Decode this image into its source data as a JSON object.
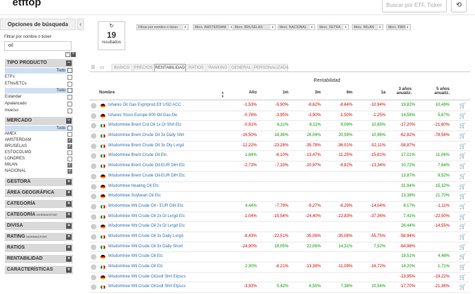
{
  "header": {
    "logo": "etftop",
    "search_placeholder": "Buscar por ETF, Ticker",
    "history_icon": "history-icon"
  },
  "sidebar": {
    "title": "Opciones de búsqueda",
    "filter_label": "Filtrar por nombre o ticker",
    "filter_value": "oil",
    "tipo_producto": {
      "label": "TIPO PRODUCTO",
      "all_label": "Todo",
      "options": [
        {
          "label": "ETFs",
          "checked": false
        },
        {
          "label": "ETNs/ETCs",
          "checked": false
        }
      ],
      "all_label2": "Todo",
      "options2": [
        {
          "label": "Estándar",
          "checked": false
        },
        {
          "label": "Apalancado",
          "checked": false
        },
        {
          "label": "Inverso",
          "checked": false
        }
      ]
    },
    "mercado": {
      "label": "MERCADO",
      "all_label": "Todo",
      "options": [
        {
          "label": "AMEX",
          "checked": false
        },
        {
          "label": "AMSTERDAM",
          "checked": true
        },
        {
          "label": "BRUSELAS",
          "checked": true
        },
        {
          "label": "ESTOCOLMO",
          "checked": false
        },
        {
          "label": "LONDRES",
          "checked": false
        },
        {
          "label": "MILAN",
          "checked": true
        },
        {
          "label": "NACIONAL",
          "checked": true
        }
      ]
    },
    "sections": [
      {
        "label": "GESTORA",
        "small": ""
      },
      {
        "label": "ÁREA GEOGRÁFICA",
        "small": ""
      },
      {
        "label": "CATEGORÍA",
        "small": ""
      },
      {
        "label": "CATEGORÍA",
        "small": "MORNINGSTAR"
      },
      {
        "label": "DIVISA",
        "small": ""
      },
      {
        "label": "RATING",
        "small": "MORNINGSTAR"
      },
      {
        "label": "RATIOS",
        "small": ""
      },
      {
        "label": "RENTABILIDAD",
        "small": ""
      },
      {
        "label": "CARACTERÍSTICAS",
        "small": ""
      }
    ]
  },
  "results": {
    "count": "19",
    "label": "resultados",
    "refresh_icon": "refresh-icon"
  },
  "chips": [
    "Filtrar por nombre o ticker",
    "Merc. AMSTERDAM",
    "Merc. BRUSELAS",
    "Merc. NACIONAL",
    "Merc. XETRA",
    "Merc. MILAN",
    "Merc. PARIS"
  ],
  "tabs": [
    "BASICO",
    "PRECIOS",
    "RENTABILIDAD",
    "RATIOS",
    "RANKING",
    "GENERAL",
    "PERSONALIZADA"
  ],
  "active_tab": "RENTABILIDAD",
  "table": {
    "group_header": "Rentabilidad",
    "columns": [
      "Nombre",
      "Año",
      "1m",
      "3m",
      "6m",
      "1a",
      "3 años anualiz.",
      "5 años anualiz."
    ],
    "rows": [
      {
        "flag": "de",
        "name": "Ishares Oil Gas Explrprod Etf USD ACC",
        "v": [
          "-1,53%",
          "-5,90%",
          "-8,62%",
          "-8,64%",
          "-10,94%",
          "19,82%",
          "10,49%"
        ]
      },
      {
        "flag": "de",
        "name": "Ishares Stoxx Europe 600 Oil Gas-De",
        "v": [
          "-0,76%",
          "-3,95%",
          "-3,90%",
          "-1,50%",
          "-1,25%",
          "14,58%",
          "5,87%"
        ]
      },
      {
        "flag": "it",
        "name": "Wisdomtree Brent Crd Oil 1x Dl Shrt Etc",
        "v": [
          "-0,91%",
          "6,11%",
          "8,11%",
          "9,09%",
          "10,65%",
          "-17,20%",
          "-21,60%"
        ]
      },
      {
        "flag": "it",
        "name": "Wisdomtree Brent Crude Oil 3x Daily Shrt",
        "v": [
          "-16,50%",
          "18,36%",
          "26,04%",
          "20,59%",
          "10,96%",
          "-62,82%",
          "-78,56%"
        ]
      },
      {
        "flag": "it",
        "name": "Wisdomtree Brent Crude Oil 3x Dly Lvrgd",
        "v": [
          "-12,22%",
          "-23,28%",
          "-35,78%",
          "-36,01%",
          "-52,11%",
          "-58,87%",
          ""
        ]
      },
      {
        "flag": "it",
        "name": "Wisdomtree Brent Crude Oil Etc",
        "v": [
          "1,84%",
          "-8,10%",
          "-13,47%",
          "-11,25%",
          "-15,81%",
          "17,01%",
          "11,06%"
        ]
      },
      {
        "flag": "it",
        "name": "Wisdomtree Brent Crude Oil-EUR DlH Etc",
        "v": [
          "-2,73%",
          "-7,33%",
          "-10,97%",
          "-9,82%",
          "-13,34%",
          "10,72%",
          "7,64%"
        ]
      },
      {
        "flag": "de",
        "name": "Wisdomtree Brent Crude Oil-EUR DlH Etc",
        "v": [
          "",
          "",
          "",
          "",
          "",
          "13,87%",
          "9,52%"
        ]
      },
      {
        "flag": "de",
        "name": "Wisdomtree Heating Oil Etc",
        "v": [
          "",
          "",
          "",
          "",
          "",
          "31,94%",
          "15,32%"
        ]
      },
      {
        "flag": "de",
        "name": "Wisdomtree Soybean Oil Etc",
        "v": [
          "",
          "",
          "",
          "",
          "",
          "13,38%",
          "21,70%"
        ]
      },
      {
        "flag": "it",
        "name": "Wisdomtree Wti Crude Oil - EUR DlH Etc",
        "v": [
          "4,44%",
          "-7,79%",
          "-9,27%",
          "-8,29%",
          "-14,04%",
          "8,17%",
          "-1,11%"
        ]
      },
      {
        "flag": "it",
        "name": "Wisdomtree Wti Crude Oil 2x Dl Lvrgd Etc",
        "v": [
          "-1,04%",
          "-15,54%",
          "-24,40%",
          "-22,83%",
          "-37,36%",
          "7,41%",
          "-22,50%"
        ]
      },
      {
        "flag": "de",
        "name": "Wisdomtree Wti Crude Oil 2x Dl Lvrgd Etc",
        "v": [
          "",
          "",
          "",
          "",
          "",
          "26,44%",
          "-14,55%"
        ]
      },
      {
        "flag": "it",
        "name": "Wisdomtree Wti Crude Oil 3x Daily Lvrgd",
        "v": [
          "-8,43%",
          "-22,51%",
          "-35,06%",
          "-35,08%",
          "-55,75%",
          "-58,94%",
          ""
        ]
      },
      {
        "flag": "it",
        "name": "Wisdomtree Wti Crude Oil 3x Daily Short",
        "v": [
          "-24,90%",
          "18,05%",
          "22,06%",
          "14,31%",
          "7,52%",
          "-64,98%",
          ""
        ]
      },
      {
        "flag": "de",
        "name": "Wisdomtree Wti Crude Oil Etc",
        "v": [
          "",
          "",
          "",
          "",
          "",
          "19,51%",
          "4,48%"
        ]
      },
      {
        "flag": "it",
        "name": "Wisdomtree Wti Crude Oil Etc",
        "v": [
          "2,30%",
          "-8,21%",
          "-13,38%",
          "-11,09%",
          "-16,72%",
          "14,20%",
          "1,71%"
        ]
      },
      {
        "flag": "de",
        "name": "Wisdomtree Wti Crude Oil1xdl Shrt Etpscs",
        "v": [
          "",
          "",
          "",
          "",
          "",
          "-13,95%",
          "-19,22%"
        ]
      },
      {
        "flag": "it",
        "name": "Wisdomtree Wti Crude Oil1xdl Shrt Etpscs",
        "v": [
          "-3,93%",
          "5,42%",
          "6,55%",
          "7,38%",
          "10,54%",
          "-17,70%",
          "-21,36%"
        ]
      }
    ]
  }
}
